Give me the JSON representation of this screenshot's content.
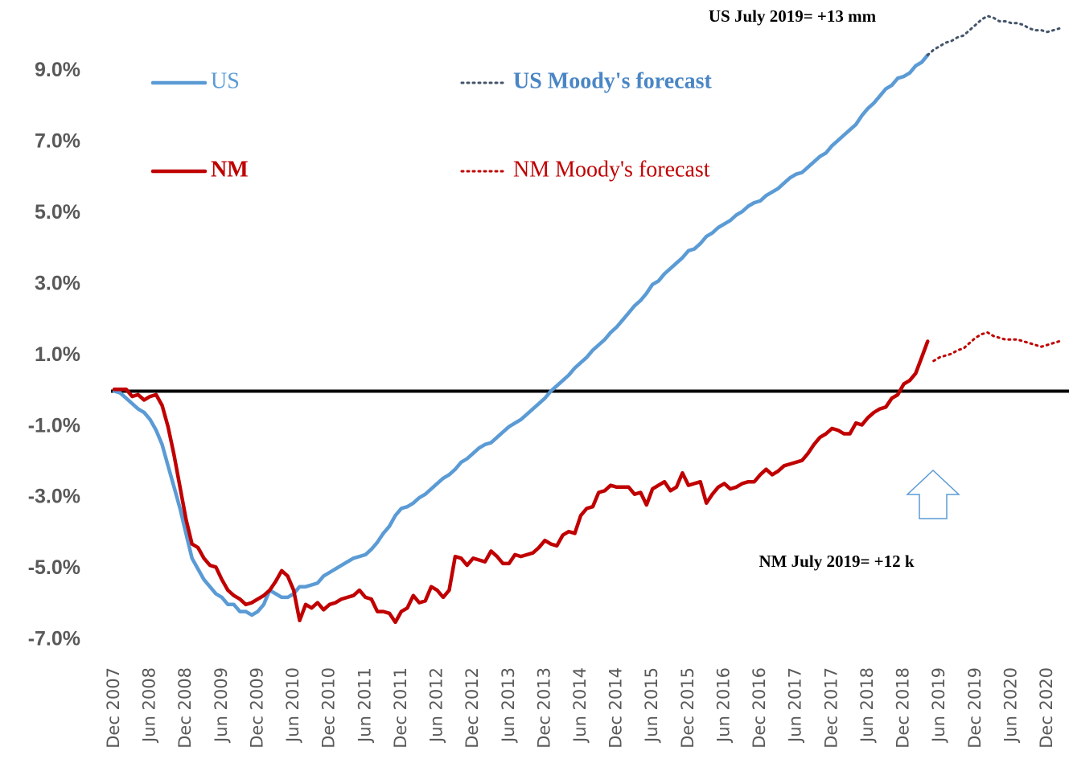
{
  "chart_data": {
    "type": "line",
    "categories": [
      "Dec 2007",
      null,
      null,
      null,
      null,
      null,
      "Jun 2008",
      null,
      null,
      null,
      null,
      null,
      "Dec 2008",
      null,
      null,
      null,
      null,
      null,
      "Jun 2009",
      null,
      null,
      null,
      null,
      null,
      "Dec 2009",
      null,
      null,
      null,
      null,
      null,
      "Jun 2010",
      null,
      null,
      null,
      null,
      null,
      "Dec 2010",
      null,
      null,
      null,
      null,
      null,
      "Jun 2011",
      null,
      null,
      null,
      null,
      null,
      "Dec 2011",
      null,
      null,
      null,
      null,
      null,
      "Jun 2012",
      null,
      null,
      null,
      null,
      null,
      "Dec 2012",
      null,
      null,
      null,
      null,
      null,
      "Jun 2013",
      null,
      null,
      null,
      null,
      null,
      "Dec 2013",
      null,
      null,
      null,
      null,
      null,
      "Jun 2014",
      null,
      null,
      null,
      null,
      null,
      "Dec 2014",
      null,
      null,
      null,
      null,
      null,
      "Jun 2015",
      null,
      null,
      null,
      null,
      null,
      "Dec 2015",
      null,
      null,
      null,
      null,
      null,
      "Jun 2016",
      null,
      null,
      null,
      null,
      null,
      "Dec 2016",
      null,
      null,
      null,
      null,
      null,
      "Jun 2017",
      null,
      null,
      null,
      null,
      null,
      "Dec 2017",
      null,
      null,
      null,
      null,
      null,
      "Jun 2018",
      null,
      null,
      null,
      null,
      null,
      "Dec 2018",
      null,
      null,
      null,
      null,
      null,
      "Jun 2019",
      null,
      null,
      null,
      null,
      null,
      "Dec 2019",
      null,
      null,
      null,
      null,
      null,
      "Jun 2020",
      null,
      null,
      null,
      null,
      null,
      "Dec 2020",
      null,
      null
    ],
    "series": [
      {
        "name": "US",
        "color": "#5b9bd5",
        "dash": false,
        "values": [
          0,
          -0.05,
          -0.2,
          -0.35,
          -0.5,
          -0.6,
          -0.8,
          -1.1,
          -1.5,
          -2.1,
          -2.7,
          -3.3,
          -4.0,
          -4.7,
          -5.0,
          -5.3,
          -5.5,
          -5.7,
          -5.8,
          -6.0,
          -6.0,
          -6.2,
          -6.2,
          -6.3,
          -6.2,
          -6.0,
          -5.6,
          -5.7,
          -5.8,
          -5.8,
          -5.7,
          -5.5,
          -5.5,
          -5.45,
          -5.4,
          -5.2,
          -5.1,
          -5.0,
          -4.9,
          -4.8,
          -4.7,
          -4.65,
          -4.6,
          -4.45,
          -4.25,
          -4.0,
          -3.8,
          -3.5,
          -3.3,
          -3.25,
          -3.15,
          -3.0,
          -2.9,
          -2.75,
          -2.6,
          -2.45,
          -2.35,
          -2.2,
          -2.0,
          -1.9,
          -1.75,
          -1.6,
          -1.5,
          -1.45,
          -1.3,
          -1.15,
          -1.0,
          -0.9,
          -0.8,
          -0.65,
          -0.5,
          -0.35,
          -0.2,
          0.0,
          0.15,
          0.3,
          0.45,
          0.65,
          0.8,
          0.95,
          1.15,
          1.3,
          1.45,
          1.65,
          1.8,
          2.0,
          2.2,
          2.4,
          2.55,
          2.75,
          3.0,
          3.1,
          3.3,
          3.45,
          3.6,
          3.75,
          3.95,
          4.0,
          4.15,
          4.35,
          4.45,
          4.6,
          4.7,
          4.8,
          4.95,
          5.05,
          5.2,
          5.3,
          5.35,
          5.5,
          5.6,
          5.7,
          5.85,
          6.0,
          6.1,
          6.15,
          6.3,
          6.45,
          6.6,
          6.7,
          6.9,
          7.05,
          7.2,
          7.35,
          7.5,
          7.75,
          7.95,
          8.1,
          8.3,
          8.5,
          8.6,
          8.8,
          8.85,
          8.95,
          9.15,
          9.25,
          9.45,
          null,
          null,
          null,
          null,
          null,
          null,
          null,
          null,
          null,
          null,
          null,
          null,
          null,
          null,
          null,
          null,
          null,
          null,
          null,
          null,
          null,
          null
        ]
      },
      {
        "name": "US Moody's forecast",
        "color": "#44546a",
        "dash": true,
        "values": [
          null,
          null,
          null,
          null,
          null,
          null,
          null,
          null,
          null,
          null,
          null,
          null,
          null,
          null,
          null,
          null,
          null,
          null,
          null,
          null,
          null,
          null,
          null,
          null,
          null,
          null,
          null,
          null,
          null,
          null,
          null,
          null,
          null,
          null,
          null,
          null,
          null,
          null,
          null,
          null,
          null,
          null,
          null,
          null,
          null,
          null,
          null,
          null,
          null,
          null,
          null,
          null,
          null,
          null,
          null,
          null,
          null,
          null,
          null,
          null,
          null,
          null,
          null,
          null,
          null,
          null,
          null,
          null,
          null,
          null,
          null,
          null,
          null,
          null,
          null,
          null,
          null,
          null,
          null,
          null,
          null,
          null,
          null,
          null,
          null,
          null,
          null,
          null,
          null,
          null,
          null,
          null,
          null,
          null,
          null,
          null,
          null,
          null,
          null,
          null,
          null,
          null,
          null,
          null,
          null,
          null,
          null,
          null,
          null,
          null,
          null,
          null,
          null,
          null,
          null,
          null,
          null,
          null,
          null,
          null,
          null,
          null,
          null,
          null,
          null,
          null,
          null,
          null,
          null,
          null,
          null,
          null,
          null,
          null,
          null,
          null,
          9.45,
          9.6,
          9.7,
          9.8,
          9.85,
          9.95,
          10.0,
          10.15,
          10.3,
          10.45,
          10.55,
          10.5,
          10.4,
          10.4,
          10.35,
          10.35,
          10.3,
          10.2,
          10.15,
          10.15,
          10.1,
          10.15,
          10.2
        ]
      },
      {
        "name": "NM",
        "color": "#c00000",
        "dash": false,
        "values": [
          0.05,
          0.05,
          0.05,
          -0.15,
          -0.1,
          -0.25,
          -0.15,
          -0.1,
          -0.4,
          -1.0,
          -1.8,
          -2.7,
          -3.6,
          -4.3,
          -4.4,
          -4.7,
          -4.9,
          -4.95,
          -5.3,
          -5.6,
          -5.75,
          -5.85,
          -6.0,
          -5.95,
          -5.85,
          -5.75,
          -5.6,
          -5.35,
          -5.05,
          -5.2,
          -5.6,
          -6.45,
          -6.0,
          -6.1,
          -5.95,
          -6.15,
          -6.0,
          -5.95,
          -5.85,
          -5.8,
          -5.75,
          -5.6,
          -5.8,
          -5.85,
          -6.2,
          -6.2,
          -6.25,
          -6.5,
          -6.2,
          -6.1,
          -5.75,
          -5.95,
          -5.9,
          -5.5,
          -5.6,
          -5.8,
          -5.6,
          -4.65,
          -4.7,
          -4.9,
          -4.7,
          -4.75,
          -4.8,
          -4.5,
          -4.65,
          -4.85,
          -4.85,
          -4.6,
          -4.65,
          -4.6,
          -4.55,
          -4.4,
          -4.2,
          -4.3,
          -4.35,
          -4.05,
          -3.95,
          -4.0,
          -3.5,
          -3.3,
          -3.25,
          -2.85,
          -2.8,
          -2.65,
          -2.7,
          -2.7,
          -2.7,
          -2.9,
          -2.85,
          -3.2,
          -2.75,
          -2.65,
          -2.55,
          -2.8,
          -2.7,
          -2.3,
          -2.65,
          -2.6,
          -2.55,
          -3.15,
          -2.9,
          -2.7,
          -2.6,
          -2.75,
          -2.7,
          -2.6,
          -2.55,
          -2.55,
          -2.35,
          -2.2,
          -2.35,
          -2.25,
          -2.1,
          -2.05,
          -2.0,
          -1.95,
          -1.75,
          -1.5,
          -1.3,
          -1.2,
          -1.05,
          -1.1,
          -1.2,
          -1.2,
          -0.9,
          -0.95,
          -0.75,
          -0.6,
          -0.5,
          -0.45,
          -0.2,
          -0.1,
          0.2,
          0.3,
          0.5,
          0.95,
          1.4,
          null,
          null,
          null,
          null,
          null,
          null,
          null,
          null,
          null,
          null,
          null,
          null,
          null,
          null,
          null,
          null,
          null,
          null,
          null,
          null,
          null,
          null
        ]
      },
      {
        "name": "NM Moody's forecast",
        "color": "#c00000",
        "dash": true,
        "values": [
          null,
          null,
          null,
          null,
          null,
          null,
          null,
          null,
          null,
          null,
          null,
          null,
          null,
          null,
          null,
          null,
          null,
          null,
          null,
          null,
          null,
          null,
          null,
          null,
          null,
          null,
          null,
          null,
          null,
          null,
          null,
          null,
          null,
          null,
          null,
          null,
          null,
          null,
          null,
          null,
          null,
          null,
          null,
          null,
          null,
          null,
          null,
          null,
          null,
          null,
          null,
          null,
          null,
          null,
          null,
          null,
          null,
          null,
          null,
          null,
          null,
          null,
          null,
          null,
          null,
          null,
          null,
          null,
          null,
          null,
          null,
          null,
          null,
          null,
          null,
          null,
          null,
          null,
          null,
          null,
          null,
          null,
          null,
          null,
          null,
          null,
          null,
          null,
          null,
          null,
          null,
          null,
          null,
          null,
          null,
          null,
          null,
          null,
          null,
          null,
          null,
          null,
          null,
          null,
          null,
          null,
          null,
          null,
          null,
          null,
          null,
          null,
          null,
          null,
          null,
          null,
          null,
          null,
          null,
          null,
          null,
          null,
          null,
          null,
          null,
          null,
          null,
          null,
          null,
          null,
          null,
          null,
          null,
          null,
          null,
          null,
          null,
          0.85,
          0.95,
          1.0,
          1.05,
          1.15,
          1.2,
          1.35,
          1.5,
          1.6,
          1.65,
          1.55,
          1.5,
          1.45,
          1.45,
          1.45,
          1.4,
          1.35,
          1.3,
          1.25,
          1.3,
          1.35,
          1.4
        ]
      }
    ],
    "ylim": [
      -7,
      11
    ],
    "yticks": [
      {
        "value": -7,
        "label": "-7.0%"
      },
      {
        "value": -5,
        "label": "-5.0%"
      },
      {
        "value": -3,
        "label": "-3.0%"
      },
      {
        "value": -1,
        "label": "-1.0%"
      },
      {
        "value": 1,
        "label": "1.0%"
      },
      {
        "value": 3,
        "label": "3.0%"
      },
      {
        "value": 5,
        "label": "5.0%"
      },
      {
        "value": 7,
        "label": "7.0%"
      },
      {
        "value": 9,
        "label": "9.0%"
      }
    ],
    "annotations": [
      "US July 2019= +13 mm",
      "NM July 2019= +12 k"
    ]
  }
}
